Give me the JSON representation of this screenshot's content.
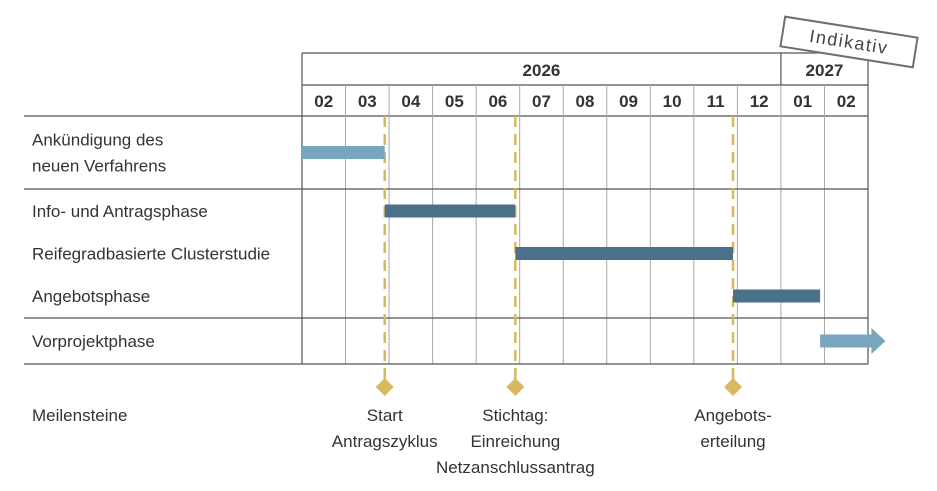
{
  "badge": "Indikativ",
  "years": [
    {
      "label": "2026",
      "months": 11
    },
    {
      "label": "2027",
      "months": 2
    }
  ],
  "months": [
    "02",
    "03",
    "04",
    "05",
    "06",
    "07",
    "08",
    "09",
    "10",
    "11",
    "12",
    "01",
    "02"
  ],
  "rows": [
    {
      "lines": [
        "Ankündigung des",
        "neuen Verfahrens"
      ]
    },
    {
      "lines": [
        "Info- und Antragsphase"
      ]
    },
    {
      "lines": [
        "Reifegradbasierte Clusterstudie"
      ]
    },
    {
      "lines": [
        "Angebotsphase"
      ]
    },
    {
      "lines": [
        "Vorprojektphase"
      ]
    }
  ],
  "row_groups": [
    [
      0
    ],
    [
      1,
      2,
      3
    ],
    [
      4
    ]
  ],
  "bars": [
    {
      "row": 0,
      "start": 0.0,
      "end": 1.9,
      "color": "#79a6bf",
      "arrow": false
    },
    {
      "row": 1,
      "start": 1.9,
      "end": 4.9,
      "color": "#4a7189",
      "arrow": false
    },
    {
      "row": 2,
      "start": 4.9,
      "end": 9.9,
      "color": "#4a7189",
      "arrow": false
    },
    {
      "row": 3,
      "start": 9.9,
      "end": 11.9,
      "color": "#4a7189",
      "arrow": false
    },
    {
      "row": 4,
      "start": 11.9,
      "end": 13.4,
      "color": "#79a6bf",
      "arrow": true
    }
  ],
  "milestones_label": "Meilensteine",
  "milestones": [
    {
      "at": 1.9,
      "lines": [
        "Start",
        "Antragszyklus"
      ]
    },
    {
      "at": 4.9,
      "lines": [
        "Stichtag:",
        "Einreichung",
        "Netzanschlussantrag"
      ]
    },
    {
      "at": 9.9,
      "lines": [
        "Angebots-",
        "erteilung"
      ]
    }
  ],
  "colors": {
    "grid": "#a8a8a8",
    "frame": "#555555",
    "milestone": "#d8b95f",
    "text": "#333333"
  }
}
